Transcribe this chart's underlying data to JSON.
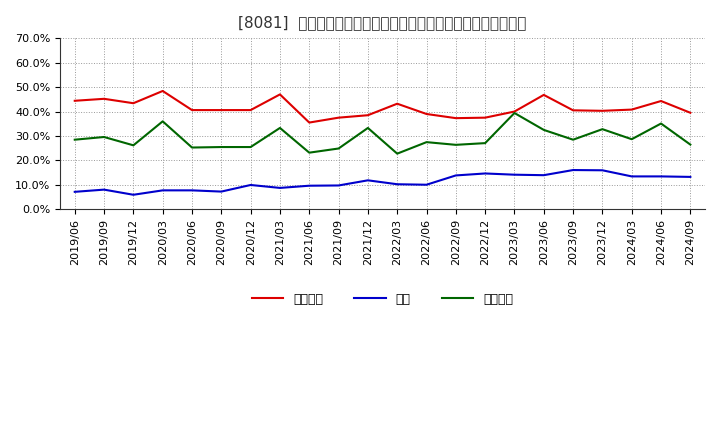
{
  "title": "[8081]  売上債権、在庫、買入債務の総資産に対する比率の推移",
  "ylim": [
    0.0,
    0.7
  ],
  "yticks": [
    0.0,
    0.1,
    0.2,
    0.3,
    0.4,
    0.5,
    0.6,
    0.7
  ],
  "background_color": "#ffffff",
  "grid_color": "#999999",
  "dates": [
    "2019/06",
    "2019/09",
    "2019/12",
    "2020/03",
    "2020/06",
    "2020/09",
    "2020/12",
    "2021/03",
    "2021/06",
    "2021/09",
    "2021/12",
    "2022/03",
    "2022/06",
    "2022/09",
    "2022/12",
    "2023/03",
    "2023/06",
    "2023/09",
    "2023/12",
    "2024/03",
    "2024/06",
    "2024/09"
  ],
  "urikake": [
    0.444,
    0.452,
    0.434,
    0.484,
    0.406,
    0.406,
    0.406,
    0.47,
    0.355,
    0.375,
    0.385,
    0.432,
    0.39,
    0.373,
    0.375,
    0.4,
    0.468,
    0.405,
    0.403,
    0.408,
    0.443,
    0.395
  ],
  "zaiko": [
    0.072,
    0.081,
    0.06,
    0.078,
    0.078,
    0.073,
    0.1,
    0.088,
    0.097,
    0.098,
    0.119,
    0.103,
    0.101,
    0.139,
    0.147,
    0.142,
    0.14,
    0.161,
    0.16,
    0.135,
    0.135,
    0.133
  ],
  "kaiire": [
    0.285,
    0.296,
    0.262,
    0.36,
    0.253,
    0.255,
    0.255,
    0.333,
    0.232,
    0.249,
    0.333,
    0.228,
    0.275,
    0.264,
    0.271,
    0.394,
    0.325,
    0.285,
    0.328,
    0.287,
    0.351,
    0.265
  ],
  "urikake_color": "#dd0000",
  "zaiko_color": "#0000cc",
  "kaiire_color": "#006600",
  "legend_urikake": "売上債権",
  "legend_zaiko": "在庫",
  "legend_kaiire": "買入債務",
  "line_width": 1.5,
  "title_fontsize": 11,
  "tick_fontsize": 8,
  "legend_fontsize": 9,
  "text_color": "#333333"
}
